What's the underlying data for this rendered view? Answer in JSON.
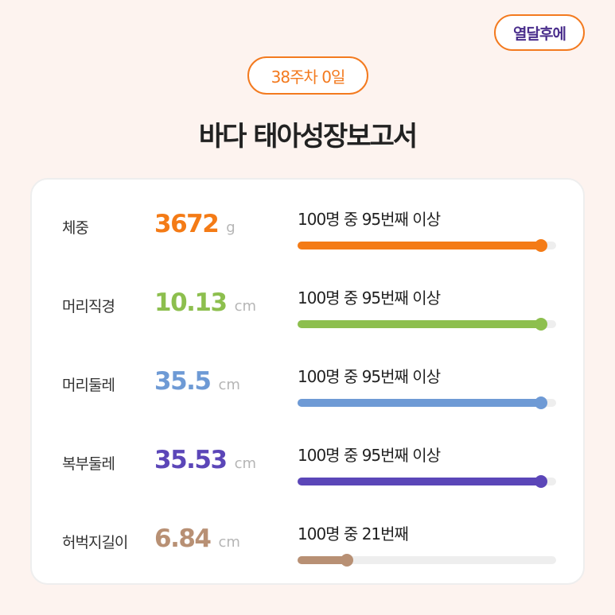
{
  "brand_badge": "열달후에",
  "week_badge": "38주차 0일",
  "title": "바다 태아성장보고서",
  "metrics": [
    {
      "label": "체중",
      "value": "3672",
      "unit": "g",
      "rank": "100명 중 95번째 이상",
      "percentile": 0.94,
      "color": "#f47b16"
    },
    {
      "label": "머리직경",
      "value": "10.13",
      "unit": "cm",
      "rank": "100명 중 95번째 이상",
      "percentile": 0.94,
      "color": "#8dbf4e"
    },
    {
      "label": "머리둘레",
      "value": "35.5",
      "unit": "cm",
      "rank": "100명 중 95번째 이상",
      "percentile": 0.94,
      "color": "#6e9ad5"
    },
    {
      "label": "복부둘레",
      "value": "35.53",
      "unit": "cm",
      "rank": "100명 중 95번째 이상",
      "percentile": 0.94,
      "color": "#5b46b8"
    },
    {
      "label": "허벅지길이",
      "value": "6.84",
      "unit": "cm",
      "rank": "100명 중 21번째",
      "percentile": 0.19,
      "color": "#b89074"
    }
  ]
}
